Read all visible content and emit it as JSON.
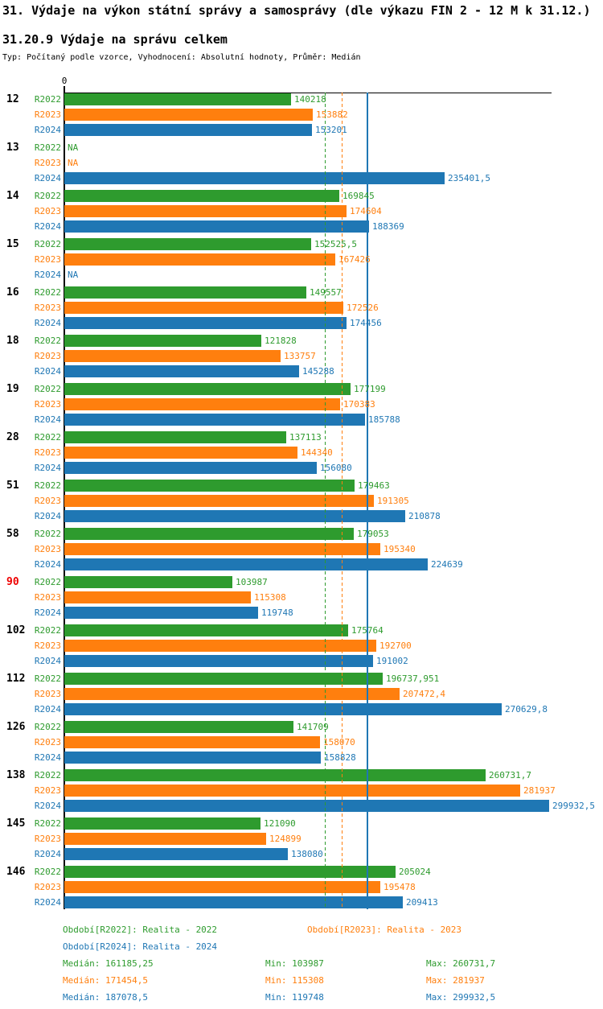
{
  "header": {
    "title": "31. Výdaje na výkon státní správy a samosprávy (dle výkazu FIN 2 - 12 M k 31.12.)",
    "subtitle": "31.20.9 Výdaje na správu celkem",
    "meta": "Typ: Počítaný podle vzorce, Vyhodnocení: Absolutní hodnoty, Průměr: Medián"
  },
  "colors": {
    "r2022": "#2E9B2E",
    "r2023": "#FF7F0E",
    "r2024": "#1F77B4",
    "highlight_row_id": "#EE0000",
    "axis": "#000000"
  },
  "chart_data": {
    "type": "bar",
    "orientation": "horizontal",
    "x_axis": {
      "zero_label": "0",
      "min": 0,
      "max": 301300,
      "grid": false
    },
    "series_names": [
      "R2022",
      "R2023",
      "R2024"
    ],
    "na_label": "NA",
    "median_lines": [
      {
        "series": "R2022",
        "value": 161185.25,
        "style": "dashed"
      },
      {
        "series": "R2023",
        "value": 171454.5,
        "style": "dashed"
      },
      {
        "series": "R2024",
        "value": 187078.5,
        "style": "solid"
      }
    ],
    "summary": [
      {
        "series": "R2022",
        "median": 161185.25,
        "min": 103987,
        "max": 260731.7
      },
      {
        "series": "R2023",
        "median": 171454.5,
        "min": 115308,
        "max": 281937
      },
      {
        "series": "R2024",
        "median": 187078.5,
        "min": 119748,
        "max": 299932.5
      }
    ],
    "rows": [
      {
        "id": "12",
        "highlight": false,
        "values": [
          140218,
          153882,
          153201
        ],
        "labels": [
          "140218",
          "153882",
          "153201"
        ]
      },
      {
        "id": "13",
        "highlight": false,
        "values": [
          null,
          null,
          235401.5
        ],
        "labels": [
          "NA",
          "NA",
          "235401,5"
        ]
      },
      {
        "id": "14",
        "highlight": false,
        "values": [
          169845,
          174604,
          188369
        ],
        "labels": [
          "169845",
          "174604",
          "188369"
        ]
      },
      {
        "id": "15",
        "highlight": false,
        "values": [
          152525.5,
          167426,
          null
        ],
        "labels": [
          "152525,5",
          "167426",
          "NA"
        ]
      },
      {
        "id": "16",
        "highlight": false,
        "values": [
          149557,
          172526,
          174456
        ],
        "labels": [
          "149557",
          "172526",
          "174456"
        ]
      },
      {
        "id": "18",
        "highlight": false,
        "values": [
          121828,
          133757,
          145288
        ],
        "labels": [
          "121828",
          "133757",
          "145288"
        ]
      },
      {
        "id": "19",
        "highlight": false,
        "values": [
          177199,
          170383,
          185788
        ],
        "labels": [
          "177199",
          "170383",
          "185788"
        ]
      },
      {
        "id": "28",
        "highlight": false,
        "values": [
          137113,
          144340,
          156080
        ],
        "labels": [
          "137113",
          "144340",
          "156080"
        ]
      },
      {
        "id": "51",
        "highlight": false,
        "values": [
          179463,
          191305,
          210878
        ],
        "labels": [
          "179463",
          "191305",
          "210878"
        ]
      },
      {
        "id": "58",
        "highlight": false,
        "values": [
          179053,
          195340,
          224639
        ],
        "labels": [
          "179053",
          "195340",
          "224639"
        ]
      },
      {
        "id": "90",
        "highlight": true,
        "values": [
          103987,
          115308,
          119748
        ],
        "labels": [
          "103987",
          "115308",
          "119748"
        ]
      },
      {
        "id": "102",
        "highlight": false,
        "values": [
          175764,
          192700,
          191002
        ],
        "labels": [
          "175764",
          "192700",
          "191002"
        ]
      },
      {
        "id": "112",
        "highlight": false,
        "values": [
          196737.951,
          207472.4,
          270629.8
        ],
        "labels": [
          "196737,951",
          "207472,4",
          "270629,8"
        ]
      },
      {
        "id": "126",
        "highlight": false,
        "values": [
          141709,
          158070,
          158828
        ],
        "labels": [
          "141709",
          "158070",
          "158828"
        ]
      },
      {
        "id": "138",
        "highlight": false,
        "values": [
          260731.7,
          281937,
          299932.5
        ],
        "labels": [
          "260731,7",
          "281937",
          "299932,5"
        ]
      },
      {
        "id": "145",
        "highlight": false,
        "values": [
          121090,
          124899,
          138080
        ],
        "labels": [
          "121090",
          "124899",
          "138080"
        ]
      },
      {
        "id": "146",
        "highlight": false,
        "values": [
          205024,
          195478,
          209413
        ],
        "labels": [
          "205024",
          "195478",
          "209413"
        ]
      }
    ]
  },
  "footer": {
    "legend": [
      {
        "series": "R2022",
        "text": "Období[R2022]: Realita - 2022"
      },
      {
        "series": "R2023",
        "text": "Období[R2023]: Realita - 2023"
      },
      {
        "series": "R2024",
        "text": "Období[R2024]: Realita - 2024"
      }
    ],
    "stats": [
      {
        "series": "R2022",
        "median": "Medián: 161185,25",
        "min": "Min: 103987",
        "max": "Max: 260731,7"
      },
      {
        "series": "R2023",
        "median": "Medián: 171454,5",
        "min": "Min: 115308",
        "max": "Max: 281937"
      },
      {
        "series": "R2024",
        "median": "Medián: 187078,5",
        "min": "Min: 119748",
        "max": "Max: 299932,5"
      }
    ]
  }
}
